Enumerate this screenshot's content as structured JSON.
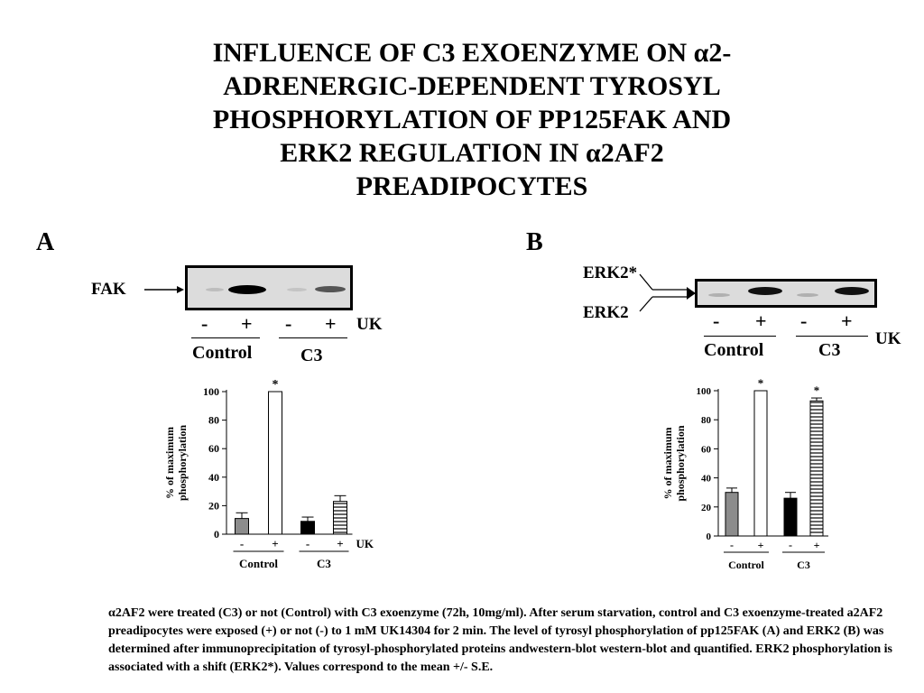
{
  "title_lines": [
    "INFLUENCE OF C3 EXOENZYME ON α2-",
    "ADRENERGIC-DEPENDENT TYROSYL",
    "PHOSPHORYLATION OF PP125FAK AND",
    "ERK2 REGULATION  IN α2AF2",
    "PREADIPOCYTES"
  ],
  "panels": {
    "a": {
      "label": "A",
      "blot_label": "FAK",
      "signs": [
        "-",
        "+",
        "-",
        "+"
      ],
      "uk": "UK",
      "groups": [
        "Control",
        "C3"
      ]
    },
    "b": {
      "label": "B",
      "band_labels": [
        "ERK2*",
        "ERK2"
      ],
      "signs": [
        "-",
        "+",
        "-",
        "+"
      ],
      "uk": "UK",
      "groups": [
        "Control",
        "C3"
      ]
    }
  },
  "chart_data": [
    {
      "type": "bar",
      "categories": [
        "-",
        "+",
        "-",
        "+"
      ],
      "groups": [
        "Control",
        "C3"
      ],
      "values": [
        11,
        100,
        9,
        23
      ],
      "errors": [
        4,
        0,
        3,
        4
      ],
      "significant": [
        "",
        "*",
        "",
        ""
      ],
      "bar_colors": [
        "#8c8c8c",
        "#ffffff",
        "#000000",
        "hatch"
      ],
      "ylabel_lines": [
        "% of maximum",
        "phosphorylation"
      ],
      "x_suffix": "UK",
      "ylim": [
        0,
        100
      ],
      "yticks": [
        0,
        20,
        40,
        60,
        80,
        100
      ]
    },
    {
      "type": "bar",
      "categories": [
        "-",
        "+",
        "-",
        "+"
      ],
      "groups": [
        "Control",
        "C3"
      ],
      "values": [
        30,
        100,
        26,
        93
      ],
      "errors": [
        3,
        0,
        4,
        2
      ],
      "significant": [
        "",
        "*",
        "",
        "*"
      ],
      "bar_colors": [
        "#8c8c8c",
        "#ffffff",
        "#000000",
        "hatch"
      ],
      "ylabel_lines": [
        "% of maximum",
        "phosphorylation"
      ],
      "x_suffix": "",
      "ylim": [
        0,
        100
      ],
      "yticks": [
        0,
        20,
        40,
        60,
        80,
        100
      ]
    }
  ],
  "caption": "α2AF2 were treated (C3) or not (Control) with C3 exoenzyme (72h, 10mg/ml). After serum starvation, control and C3 exoenzyme-treated a2AF2 preadipocytes were exposed (+) or not (-) to 1 mM UK14304 for 2 min. The level of tyrosyl phosphorylation of pp125FAK (A) and ERK2 (B) was determined after immunoprecipitation of tyrosyl-phosphorylated proteins andwestern-blot western-blot and quantified. ERK2 phosphorylation is associated with a shift (ERK2*). Values correspond to the mean +/- S.E."
}
